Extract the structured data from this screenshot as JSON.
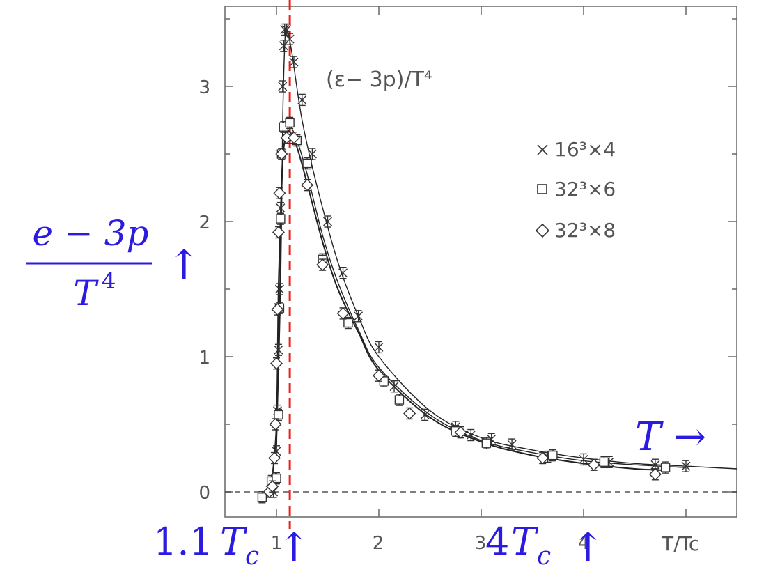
{
  "chart_data": {
    "type": "scatter",
    "title": "(ε− 3p)/T⁴",
    "xlabel": "T/Tc",
    "x_ticks": [
      "1",
      "2",
      "3",
      "4"
    ],
    "y_ticks": [
      "0",
      "1",
      "2",
      "3"
    ],
    "xlim": [
      0.85,
      5.5
    ],
    "ylim": [
      -0.18,
      3.55
    ],
    "grid": false,
    "legend_position": "top-right",
    "reference_lines": [
      {
        "kind": "horizontal",
        "y": 0,
        "style": "dashed",
        "color": "#333333"
      },
      {
        "kind": "vertical",
        "x": 1.13,
        "style": "dashed",
        "color": "#e8211d"
      }
    ],
    "series": [
      {
        "name": "16³×4",
        "marker": "x",
        "points": [
          [
            0.97,
            0.0
          ],
          [
            0.99,
            0.1
          ],
          [
            1.0,
            0.3
          ],
          [
            1.01,
            0.6
          ],
          [
            1.02,
            1.05
          ],
          [
            1.03,
            1.5
          ],
          [
            1.04,
            2.1
          ],
          [
            1.05,
            2.5
          ],
          [
            1.06,
            3.0
          ],
          [
            1.07,
            3.3
          ],
          [
            1.08,
            3.42
          ],
          [
            1.1,
            3.42
          ],
          [
            1.13,
            3.35
          ],
          [
            1.17,
            3.18
          ],
          [
            1.25,
            2.9
          ],
          [
            1.35,
            2.5
          ],
          [
            1.5,
            2.0
          ],
          [
            1.65,
            1.62
          ],
          [
            1.8,
            1.3
          ],
          [
            2.0,
            1.07
          ],
          [
            2.15,
            0.78
          ],
          [
            2.45,
            0.57
          ],
          [
            2.75,
            0.48
          ],
          [
            2.9,
            0.42
          ],
          [
            3.1,
            0.39
          ],
          [
            3.3,
            0.35
          ],
          [
            3.65,
            0.26
          ],
          [
            4.0,
            0.24
          ],
          [
            4.25,
            0.22
          ],
          [
            4.7,
            0.2
          ],
          [
            5.0,
            0.19
          ]
        ],
        "curve": [
          [
            1.0,
            0.35
          ],
          [
            1.04,
            1.5
          ],
          [
            1.06,
            2.7
          ],
          [
            1.08,
            3.3
          ],
          [
            1.1,
            3.42
          ],
          [
            1.15,
            3.25
          ],
          [
            1.25,
            2.75
          ],
          [
            1.4,
            2.25
          ],
          [
            1.6,
            1.7
          ],
          [
            1.8,
            1.3
          ],
          [
            2.0,
            1.0
          ],
          [
            2.5,
            0.6
          ],
          [
            3.0,
            0.4
          ],
          [
            3.5,
            0.31
          ],
          [
            4.0,
            0.25
          ],
          [
            4.5,
            0.21
          ],
          [
            5.0,
            0.19
          ],
          [
            5.5,
            0.17
          ]
        ]
      },
      {
        "name": "32³×6",
        "marker": "square",
        "points": [
          [
            0.86,
            -0.04
          ],
          [
            0.95,
            0.08
          ],
          [
            1.0,
            0.1
          ],
          [
            1.02,
            0.57
          ],
          [
            1.03,
            1.36
          ],
          [
            1.04,
            2.02
          ],
          [
            1.05,
            2.5
          ],
          [
            1.07,
            2.7
          ],
          [
            1.13,
            2.73
          ],
          [
            1.2,
            2.6
          ],
          [
            1.3,
            2.43
          ],
          [
            1.45,
            1.72
          ],
          [
            1.7,
            1.25
          ],
          [
            2.05,
            0.82
          ],
          [
            2.2,
            0.68
          ],
          [
            2.75,
            0.45
          ],
          [
            3.05,
            0.36
          ],
          [
            3.7,
            0.27
          ],
          [
            4.2,
            0.22
          ],
          [
            4.8,
            0.18
          ]
        ],
        "curve": [
          [
            1.0,
            0.3
          ],
          [
            1.03,
            1.4
          ],
          [
            1.05,
            2.2
          ],
          [
            1.08,
            2.62
          ],
          [
            1.12,
            2.72
          ],
          [
            1.2,
            2.6
          ],
          [
            1.3,
            2.35
          ],
          [
            1.45,
            1.9
          ],
          [
            1.6,
            1.55
          ],
          [
            1.8,
            1.2
          ],
          [
            2.0,
            0.92
          ],
          [
            2.5,
            0.57
          ],
          [
            3.0,
            0.38
          ],
          [
            3.5,
            0.29
          ],
          [
            4.0,
            0.23
          ],
          [
            4.5,
            0.2
          ],
          [
            5.0,
            0.18
          ]
        ]
      },
      {
        "name": "32³×8",
        "marker": "diamond",
        "points": [
          [
            0.93,
            0.0
          ],
          [
            0.96,
            0.04
          ],
          [
            0.98,
            0.25
          ],
          [
            0.99,
            0.5
          ],
          [
            1.0,
            0.95
          ],
          [
            1.01,
            1.35
          ],
          [
            1.02,
            1.92
          ],
          [
            1.03,
            2.21
          ],
          [
            1.05,
            2.5
          ],
          [
            1.1,
            2.62
          ],
          [
            1.17,
            2.62
          ],
          [
            1.3,
            2.27
          ],
          [
            1.45,
            1.68
          ],
          [
            1.65,
            1.32
          ],
          [
            2.0,
            0.86
          ],
          [
            2.3,
            0.58
          ],
          [
            2.8,
            0.44
          ],
          [
            3.6,
            0.25
          ],
          [
            4.1,
            0.2
          ],
          [
            4.7,
            0.13
          ]
        ],
        "curve": [
          [
            0.95,
            0.05
          ],
          [
            1.0,
            0.5
          ],
          [
            1.02,
            1.5
          ],
          [
            1.05,
            2.3
          ],
          [
            1.08,
            2.6
          ],
          [
            1.12,
            2.67
          ],
          [
            1.2,
            2.55
          ],
          [
            1.3,
            2.28
          ],
          [
            1.45,
            1.85
          ],
          [
            1.6,
            1.5
          ],
          [
            1.8,
            1.18
          ],
          [
            2.0,
            0.9
          ],
          [
            2.5,
            0.55
          ],
          [
            3.0,
            0.37
          ],
          [
            3.5,
            0.27
          ],
          [
            4.0,
            0.21
          ],
          [
            4.5,
            0.17
          ],
          [
            4.8,
            0.16
          ]
        ]
      }
    ]
  },
  "annotations": {
    "y_fraction_numerator": "e − 3p",
    "y_fraction_denominator": "T",
    "y_fraction_exponent": "4",
    "y_arrow": "↑",
    "t_arrow_label": "T →",
    "tc_marker_value": "1.1",
    "tc_marker_symbol": "T",
    "tc_marker_subscript": "c",
    "tc_marker_arrow": "↑",
    "four_tc_value": "4",
    "four_tc_symbol": "T",
    "four_tc_subscript": "c",
    "four_tc_arrow": "↑"
  },
  "colors": {
    "annotation_blue": "#2b1be0",
    "reference_red": "#e8211d",
    "axis_gray": "#555555"
  }
}
